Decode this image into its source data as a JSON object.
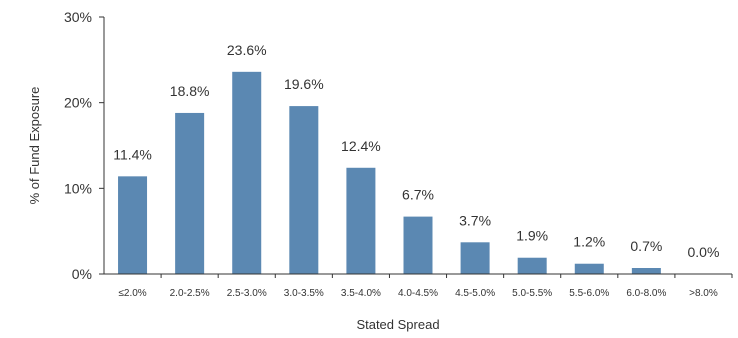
{
  "chart_data": {
    "type": "bar",
    "categories": [
      "≤2.0%",
      "2.0-2.5%",
      "2.5-3.0%",
      "3.0-3.5%",
      "3.5-4.0%",
      "4.0-4.5%",
      "4.5-5.0%",
      "5.0-5.5%",
      "5.5-6.0%",
      "6.0-8.0%",
      ">8.0%"
    ],
    "values": [
      11.4,
      18.8,
      23.6,
      19.6,
      12.4,
      6.7,
      3.7,
      1.9,
      1.2,
      0.7,
      0.0
    ],
    "data_labels": [
      "11.4%",
      "18.8%",
      "23.6%",
      "19.6%",
      "12.4%",
      "6.7%",
      "3.7%",
      "1.9%",
      "1.2%",
      "0.7%",
      "0.0%"
    ],
    "title": "",
    "xlabel": "Stated Spread",
    "ylabel": "% of Fund Exposure",
    "ylim": [
      0,
      30
    ],
    "yticks": [
      0,
      10,
      20,
      30
    ],
    "ytick_labels": [
      "0%",
      "10%",
      "20%",
      "30%"
    ],
    "grid": false,
    "legend": "none",
    "bar_color": "#5b88b2",
    "axis_color": "#333333",
    "text_color": "#333333"
  }
}
